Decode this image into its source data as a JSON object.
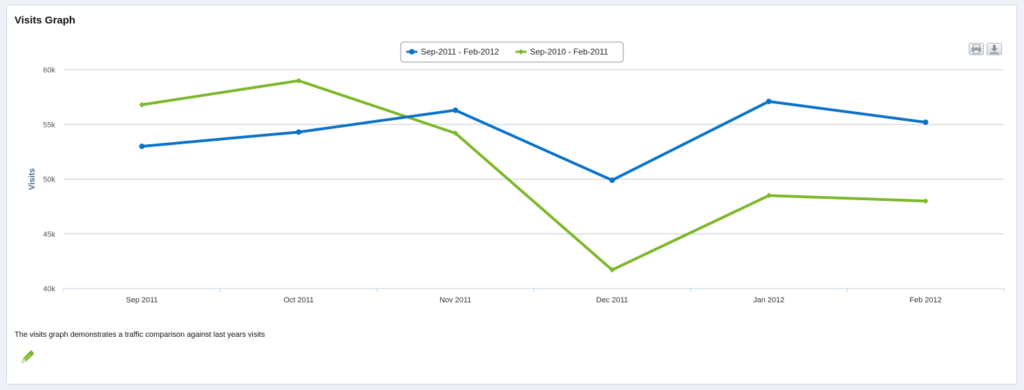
{
  "panel": {
    "title": "Visits Graph",
    "description": "The visits graph demonstrates a traffic comparison against last years visits"
  },
  "toolbar": {
    "print_icon": "print-icon",
    "export_icon": "download-icon",
    "edit_icon": "pencil-icon"
  },
  "chart_data": {
    "type": "line",
    "categories": [
      "Sep 2011",
      "Oct 2011",
      "Nov 2011",
      "Dec 2011",
      "Jan 2012",
      "Feb 2012"
    ],
    "ylabel": "Visits",
    "xlabel": "",
    "ylim": [
      40000,
      60000
    ],
    "yticks": [
      40000,
      45000,
      50000,
      55000,
      60000
    ],
    "ytick_labels": [
      "40k",
      "45k",
      "50k",
      "55k",
      "60k"
    ],
    "grid": true,
    "legend_position": "top-center",
    "series": [
      {
        "name": "Sep-2011 - Feb-2012",
        "color": "#0a72c9",
        "marker": "circle",
        "values": [
          53000,
          54300,
          56300,
          49900,
          57100,
          55200
        ]
      },
      {
        "name": "Sep-2010 - Feb-2011",
        "color": "#7cb82a",
        "marker": "diamond",
        "values": [
          56800,
          59000,
          54200,
          41700,
          48500,
          48000
        ]
      }
    ]
  }
}
